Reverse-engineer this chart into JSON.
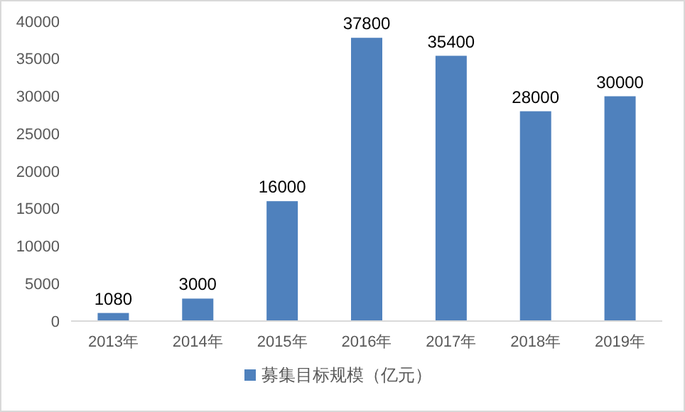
{
  "chart_data": {
    "type": "bar",
    "categories": [
      "2013年",
      "2014年",
      "2015年",
      "2016年",
      "2017年",
      "2018年",
      "2019年"
    ],
    "series": [
      {
        "name": "募集目标规模（亿元）",
        "color": "#4f81bd",
        "values": [
          1080,
          3000,
          16000,
          37800,
          35400,
          28000,
          30000
        ]
      }
    ],
    "ylim": [
      0,
      40000
    ],
    "yticks": [
      0,
      5000,
      10000,
      15000,
      20000,
      25000,
      30000,
      35000,
      40000
    ],
    "grid": false,
    "legend": "bottom",
    "data_labels": true
  }
}
